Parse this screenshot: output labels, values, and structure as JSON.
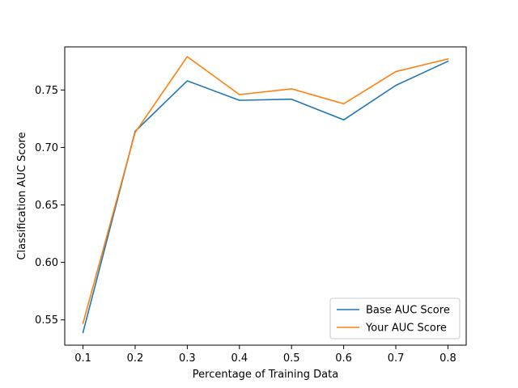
{
  "chart_data": {
    "type": "line",
    "title": "",
    "xlabel": "Percentage of Training Data",
    "ylabel": "Classification AUC Score",
    "x": [
      0.1,
      0.2,
      0.3,
      0.4,
      0.5,
      0.6,
      0.7,
      0.8
    ],
    "xlim": [
      0.065,
      0.835
    ],
    "ylim": [
      0.528,
      0.7875
    ],
    "xticks": [
      "0.1",
      "0.2",
      "0.3",
      "0.4",
      "0.5",
      "0.6",
      "0.7",
      "0.8"
    ],
    "yticks": [
      "0.55",
      "0.60",
      "0.65",
      "0.70",
      "0.75"
    ],
    "grid": false,
    "legend_position": "lower-right",
    "series": [
      {
        "name": "Base AUC Score",
        "color": "#1f77b4",
        "values": [
          0.539,
          0.714,
          0.758,
          0.741,
          0.742,
          0.724,
          0.754,
          0.775
        ]
      },
      {
        "name": "Your AUC Score",
        "color": "#ff7f0e",
        "values": [
          0.547,
          0.713,
          0.779,
          0.746,
          0.751,
          0.738,
          0.766,
          0.777
        ]
      }
    ]
  }
}
